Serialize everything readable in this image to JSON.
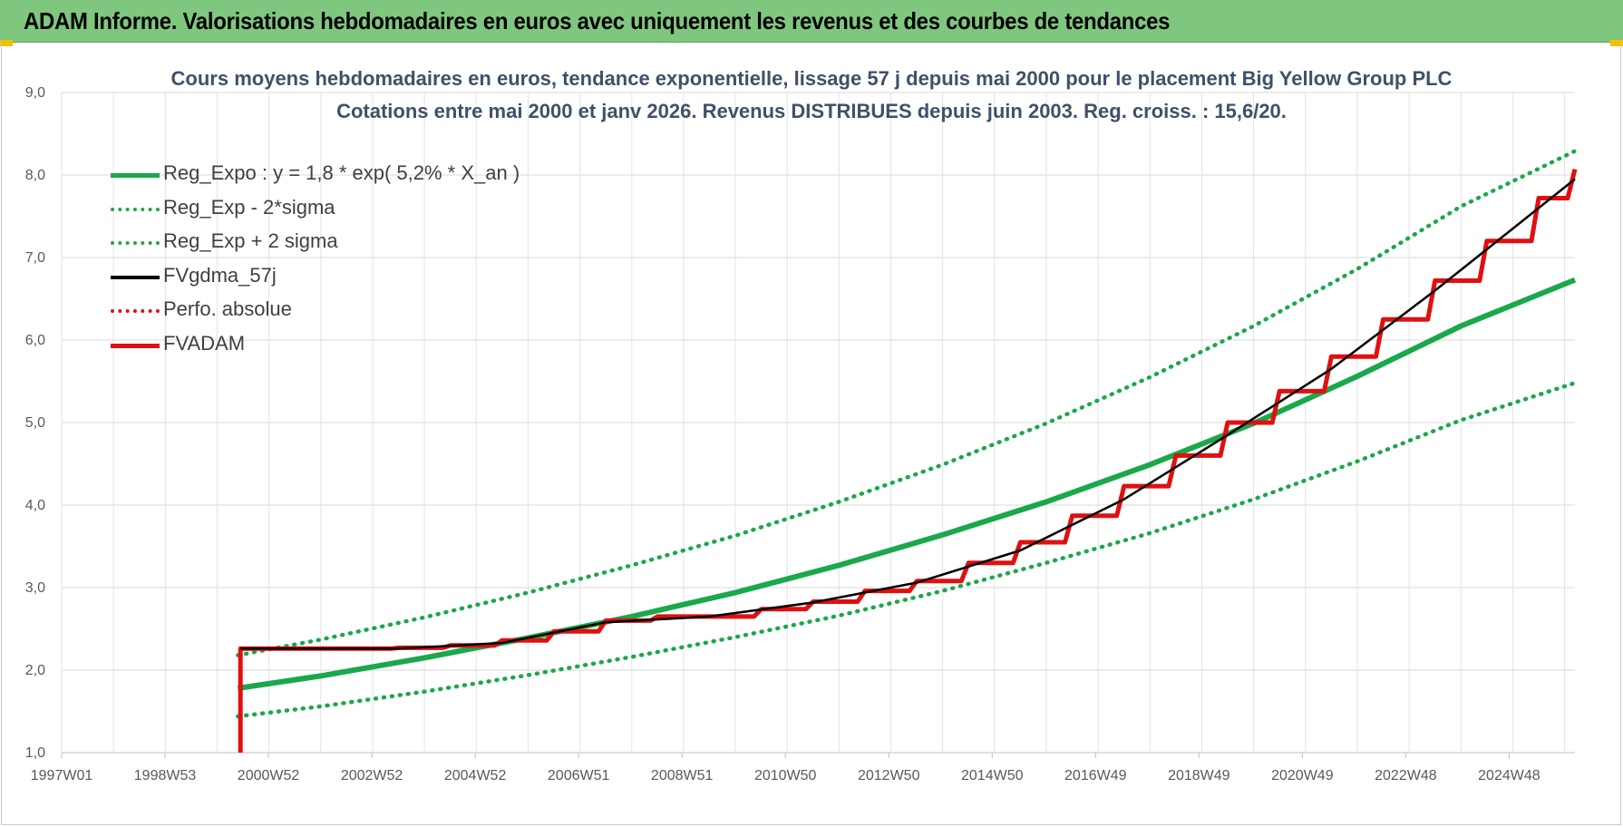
{
  "header": {
    "title": "ADAM Informe. Valorisations hebdomadaires en euros avec uniquement les revenus et des courbes de tendances"
  },
  "colors": {
    "banner": "#7fc77e",
    "trend": "#1aa84a",
    "fvadam": "#e01010",
    "fvgdma": "#000000"
  },
  "chart_data": {
    "type": "line",
    "title": "Cours moyens hebdomadaires en euros, tendance exponentielle, lissage 57 j depuis mai 2000 pour le placement Big Yellow Group PLC",
    "subtitle": "Cotations entre mai 2000 et janv 2026. Revenus DISTRIBUES depuis juin 2003. Reg. croiss. : 15,6/20.",
    "xlabel": "",
    "ylabel": "",
    "ylim": [
      1.0,
      9.0
    ],
    "yticks": [
      "1,0",
      "2,0",
      "3,0",
      "4,0",
      "5,0",
      "6,0",
      "7,0",
      "8,0",
      "9,0"
    ],
    "xticks": [
      "1997W01",
      "1998W53",
      "2000W52",
      "2002W52",
      "2004W52",
      "2006W51",
      "2008W51",
      "2010W50",
      "2012W50",
      "2014W50",
      "2016W49",
      "2018W49",
      "2020W49",
      "2022W48",
      "2024W48"
    ],
    "xlim": [
      1997.0,
      2026.2
    ],
    "grid": true,
    "legend_position": "top-left",
    "series": [
      {
        "name": "Reg_Expo : y = 1,8 * exp( 5,2% *  X_an )",
        "style": "solid",
        "color": "#1aa84a",
        "x": [
          2000.4,
          2002.0,
          2004.0,
          2006.0,
          2008.0,
          2010.0,
          2012.0,
          2014.0,
          2016.0,
          2018.0,
          2020.0,
          2022.0,
          2024.0,
          2026.2
        ],
        "y": [
          1.78,
          1.93,
          2.15,
          2.39,
          2.65,
          2.94,
          3.27,
          3.64,
          4.04,
          4.49,
          4.99,
          5.56,
          6.17,
          6.73
        ]
      },
      {
        "name": "Reg_Exp - 2*sigma",
        "style": "dotted",
        "color": "#1aa84a",
        "x": [
          2000.4,
          2002.0,
          2004.0,
          2006.0,
          2008.0,
          2010.0,
          2012.0,
          2014.0,
          2016.0,
          2018.0,
          2020.0,
          2022.0,
          2024.0,
          2026.2
        ],
        "y": [
          1.44,
          1.56,
          1.74,
          1.94,
          2.16,
          2.4,
          2.66,
          2.96,
          3.3,
          3.66,
          4.07,
          4.53,
          5.03,
          5.48
        ]
      },
      {
        "name": "Reg_Exp + 2 sigma",
        "style": "dotted",
        "color": "#1aa84a",
        "x": [
          2000.4,
          2002.0,
          2004.0,
          2006.0,
          2008.0,
          2010.0,
          2012.0,
          2014.0,
          2016.0,
          2018.0,
          2020.0,
          2022.0,
          2024.0,
          2026.2
        ],
        "y": [
          2.18,
          2.37,
          2.64,
          2.94,
          3.27,
          3.63,
          4.04,
          4.49,
          4.99,
          5.55,
          6.17,
          6.86,
          7.62,
          8.29
        ]
      },
      {
        "name": "FVgdma_57j",
        "style": "solid",
        "color": "#000000",
        "x": [
          2000.45,
          2003.5,
          2005.5,
          2007.5,
          2009.5,
          2011.5,
          2013.5,
          2015.5,
          2017.5,
          2019.5,
          2021.5,
          2023.5,
          2025.5,
          2026.2
        ],
        "y": [
          2.26,
          2.26,
          2.33,
          2.58,
          2.65,
          2.82,
          3.06,
          3.45,
          4.07,
          4.85,
          5.65,
          6.6,
          7.6,
          7.95
        ]
      },
      {
        "name": "Perfo. absolue",
        "style": "dotted",
        "color": "#e01010",
        "x": [],
        "y": []
      },
      {
        "name": "FVADAM",
        "style": "solid",
        "color": "#e01010",
        "x": [
          2000.45,
          2003.5,
          2004.5,
          2005.5,
          2006.5,
          2007.5,
          2008.5,
          2009.5,
          2010.5,
          2011.5,
          2012.5,
          2013.5,
          2014.5,
          2015.5,
          2016.5,
          2017.5,
          2018.5,
          2019.5,
          2020.5,
          2021.5,
          2022.5,
          2023.5,
          2024.5,
          2025.5,
          2026.2
        ],
        "y": [
          2.26,
          2.27,
          2.3,
          2.36,
          2.47,
          2.6,
          2.65,
          2.65,
          2.74,
          2.83,
          2.96,
          3.08,
          3.3,
          3.55,
          3.87,
          4.23,
          4.6,
          5.0,
          5.38,
          5.8,
          6.25,
          6.72,
          7.2,
          7.72,
          8.07
        ]
      }
    ]
  }
}
